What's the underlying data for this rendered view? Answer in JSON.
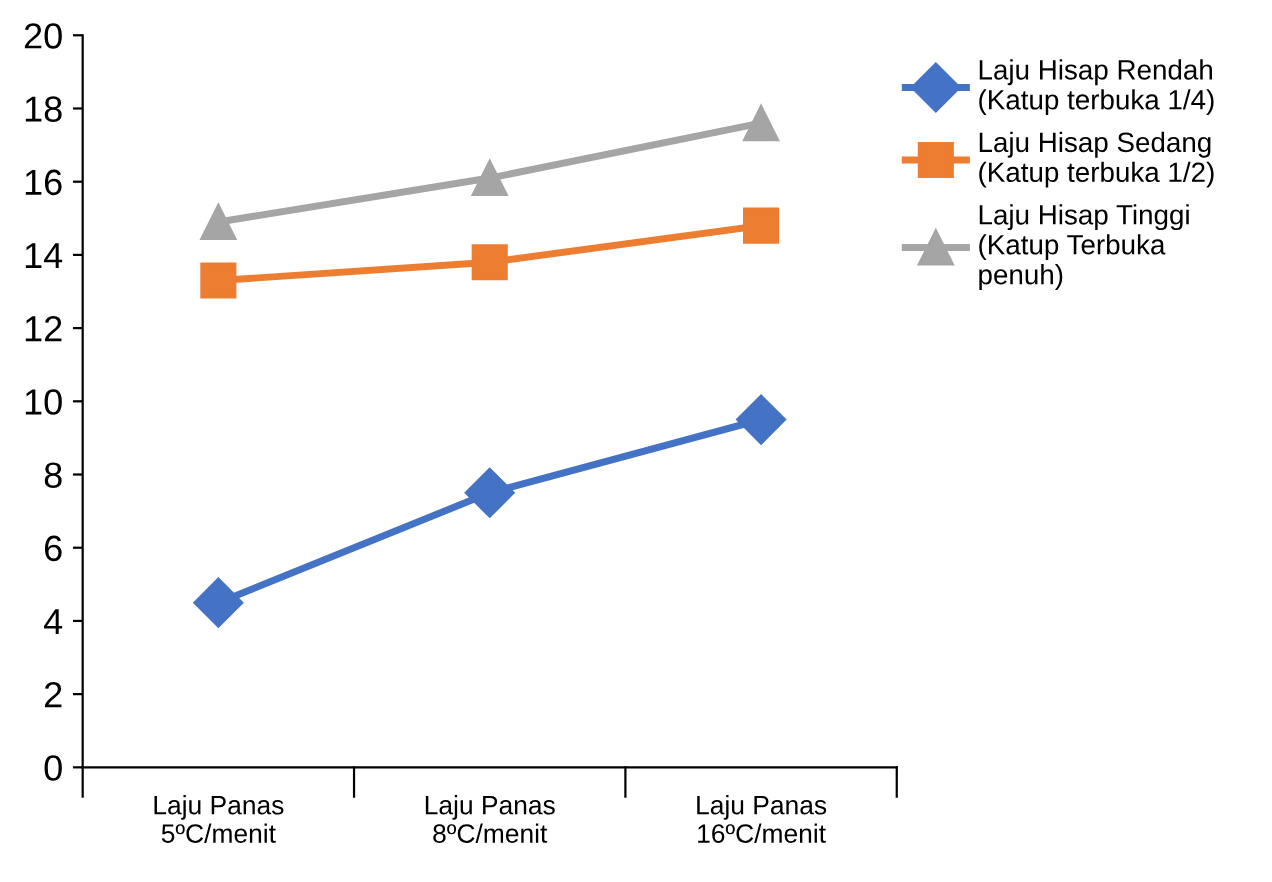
{
  "chart_data": {
    "type": "line",
    "categories": [
      "Laju Panas\n5ºC/menit",
      "Laju Panas\n8ºC/menit",
      "Laju Panas\n16ºC/menit"
    ],
    "series": [
      {
        "name": "Laju Hisap Rendah\n(Katup terbuka 1/4)",
        "color": "#4472c4",
        "marker": "diamond",
        "values": [
          4.5,
          7.5,
          9.5
        ]
      },
      {
        "name": "Laju Hisap Sedang\n(Katup terbuka 1/2)",
        "color": "#ed7d31",
        "marker": "square",
        "values": [
          13.3,
          13.8,
          14.8
        ]
      },
      {
        "name": "Laju Hisap Tinggi\n(Katup Terbuka\npenuh)",
        "color": "#a5a5a5",
        "marker": "triangle",
        "values": [
          14.9,
          16.1,
          17.6
        ]
      }
    ],
    "ylim": [
      0,
      20
    ],
    "yticks": [
      0,
      2,
      4,
      6,
      8,
      10,
      12,
      14,
      16,
      18,
      20
    ],
    "grid": false,
    "legend": "right",
    "line_style": "solid"
  }
}
